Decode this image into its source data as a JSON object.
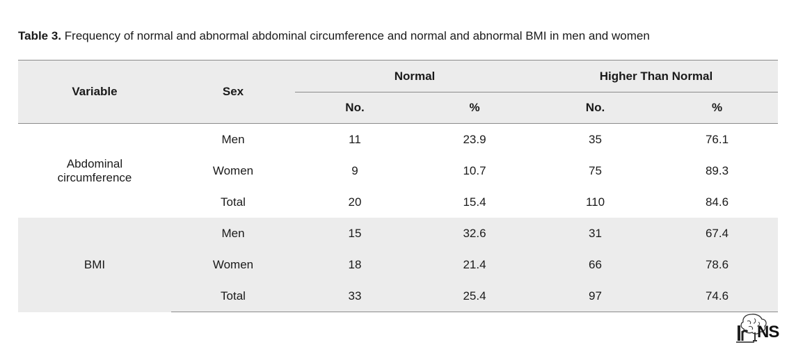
{
  "caption": {
    "label": "Table 3.",
    "text": "Frequency of normal and abnormal abdominal circumference and normal and abnormal BMI in men and women"
  },
  "header": {
    "variable": "Variable",
    "sex": "Sex",
    "normal": "Normal",
    "higher": "Higher Than Normal",
    "no1": "No.",
    "pct1": "%",
    "no2": "No.",
    "pct2": "%"
  },
  "groups": [
    {
      "variable": "Abdominal circumference",
      "rows": [
        {
          "sex": "Men",
          "normal_no": "11",
          "normal_pct": "23.9",
          "higher_no": "35",
          "higher_pct": "76.1"
        },
        {
          "sex": "Women",
          "normal_no": "9",
          "normal_pct": "10.7",
          "higher_no": "75",
          "higher_pct": "89.3"
        },
        {
          "sex": "Total",
          "normal_no": "20",
          "normal_pct": "15.4",
          "higher_no": "110",
          "higher_pct": "84.6"
        }
      ]
    },
    {
      "variable": "BMI",
      "rows": [
        {
          "sex": "Men",
          "normal_no": "15",
          "normal_pct": "32.6",
          "higher_no": "31",
          "higher_pct": "67.4"
        },
        {
          "sex": "Women",
          "normal_no": "18",
          "normal_pct": "21.4",
          "higher_no": "66",
          "higher_pct": "78.6"
        },
        {
          "sex": "Total",
          "normal_no": "33",
          "normal_pct": "25.4",
          "higher_no": "97",
          "higher_pct": "74.6"
        }
      ]
    }
  ],
  "logo": {
    "text": "NS",
    "icon": "brain-logo-icon"
  }
}
